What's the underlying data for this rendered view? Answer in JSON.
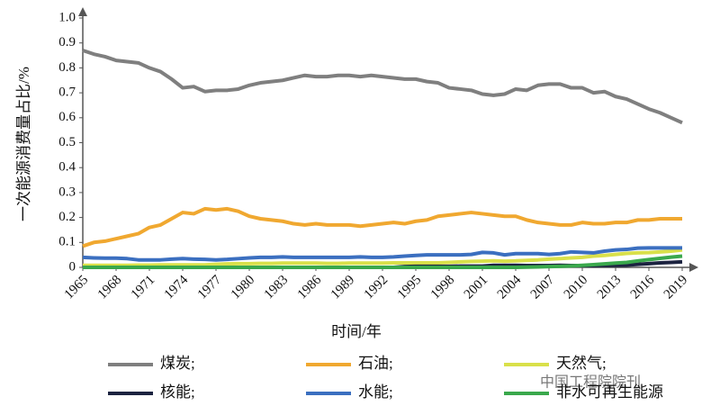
{
  "chart_data": {
    "type": "line",
    "x": [
      1965,
      1966,
      1967,
      1968,
      1969,
      1970,
      1971,
      1972,
      1973,
      1974,
      1975,
      1976,
      1977,
      1978,
      1979,
      1980,
      1981,
      1982,
      1983,
      1984,
      1985,
      1986,
      1987,
      1988,
      1989,
      1990,
      1991,
      1992,
      1993,
      1994,
      1995,
      1996,
      1997,
      1998,
      1999,
      2000,
      2001,
      2002,
      2003,
      2004,
      2005,
      2006,
      2007,
      2008,
      2009,
      2010,
      2011,
      2012,
      2013,
      2014,
      2015,
      2016,
      2017,
      2018,
      2019
    ],
    "xlim": [
      1965,
      2019
    ],
    "xticks": [
      1965,
      1968,
      1971,
      1974,
      1977,
      1980,
      1983,
      1986,
      1989,
      1992,
      1995,
      1998,
      2001,
      2004,
      2007,
      2010,
      2013,
      2016,
      2019
    ],
    "ylim": [
      0,
      1
    ],
    "yticks": [
      0,
      0.1,
      0.2,
      0.3,
      0.4,
      0.5,
      0.6,
      0.7,
      0.8,
      0.9,
      {
        "value": 1,
        "label": "1.0"
      }
    ],
    "xlabel": "时间/年",
    "ylabel": "一次能源消费量占比/%",
    "watermark": "中国工程院院刊",
    "series": [
      {
        "name": "煤炭;",
        "color": "#7f7f7f",
        "values": [
          0.87,
          0.855,
          0.845,
          0.83,
          0.825,
          0.82,
          0.8,
          0.785,
          0.755,
          0.72,
          0.725,
          0.705,
          0.71,
          0.71,
          0.715,
          0.73,
          0.74,
          0.745,
          0.75,
          0.76,
          0.77,
          0.765,
          0.765,
          0.77,
          0.77,
          0.765,
          0.77,
          0.765,
          0.76,
          0.755,
          0.755,
          0.745,
          0.74,
          0.72,
          0.715,
          0.71,
          0.695,
          0.69,
          0.695,
          0.715,
          0.71,
          0.73,
          0.735,
          0.735,
          0.72,
          0.72,
          0.7,
          0.705,
          0.685,
          0.675,
          0.655,
          0.635,
          0.62,
          0.6,
          0.58
        ]
      },
      {
        "name": "石油;",
        "color": "#f0a830",
        "values": [
          0.085,
          0.1,
          0.105,
          0.115,
          0.125,
          0.135,
          0.16,
          0.17,
          0.195,
          0.22,
          0.215,
          0.235,
          0.23,
          0.235,
          0.225,
          0.205,
          0.195,
          0.19,
          0.185,
          0.175,
          0.17,
          0.175,
          0.17,
          0.17,
          0.17,
          0.165,
          0.17,
          0.175,
          0.18,
          0.175,
          0.185,
          0.19,
          0.205,
          0.21,
          0.215,
          0.22,
          0.215,
          0.21,
          0.205,
          0.205,
          0.19,
          0.18,
          0.175,
          0.17,
          0.17,
          0.18,
          0.175,
          0.175,
          0.18,
          0.18,
          0.19,
          0.19,
          0.195,
          0.195,
          0.195
        ]
      },
      {
        "name": "天然气;",
        "color": "#d9e04a",
        "values": [
          0.008,
          0.008,
          0.008,
          0.008,
          0.008,
          0.009,
          0.009,
          0.01,
          0.01,
          0.01,
          0.01,
          0.01,
          0.012,
          0.014,
          0.015,
          0.015,
          0.016,
          0.016,
          0.017,
          0.017,
          0.017,
          0.017,
          0.016,
          0.016,
          0.017,
          0.017,
          0.017,
          0.017,
          0.018,
          0.018,
          0.018,
          0.018,
          0.018,
          0.02,
          0.022,
          0.024,
          0.025,
          0.026,
          0.025,
          0.026,
          0.028,
          0.03,
          0.033,
          0.035,
          0.038,
          0.04,
          0.045,
          0.048,
          0.052,
          0.056,
          0.058,
          0.059,
          0.062,
          0.065,
          0.07
        ]
      },
      {
        "name": "核能;",
        "color": "#1c2340",
        "values": [
          0,
          0,
          0,
          0,
          0,
          0,
          0,
          0,
          0,
          0,
          0,
          0,
          0,
          0,
          0,
          0,
          0,
          0,
          0,
          0,
          0,
          0,
          0,
          0,
          0,
          0,
          0,
          0,
          0,
          0.003,
          0.004,
          0.004,
          0.004,
          0.004,
          0.005,
          0.005,
          0.005,
          0.008,
          0.008,
          0.008,
          0.007,
          0.007,
          0.007,
          0.008,
          0.007,
          0.007,
          0.007,
          0.008,
          0.008,
          0.009,
          0.012,
          0.015,
          0.018,
          0.02,
          0.022
        ]
      },
      {
        "name": "水能;",
        "color": "#3b6fc0",
        "values": [
          0.04,
          0.038,
          0.037,
          0.037,
          0.035,
          0.03,
          0.03,
          0.03,
          0.033,
          0.035,
          0.033,
          0.032,
          0.03,
          0.032,
          0.035,
          0.038,
          0.04,
          0.04,
          0.042,
          0.04,
          0.04,
          0.04,
          0.04,
          0.04,
          0.04,
          0.042,
          0.04,
          0.04,
          0.042,
          0.045,
          0.048,
          0.05,
          0.05,
          0.05,
          0.05,
          0.052,
          0.06,
          0.058,
          0.05,
          0.055,
          0.055,
          0.055,
          0.052,
          0.055,
          0.062,
          0.06,
          0.058,
          0.065,
          0.07,
          0.072,
          0.077,
          0.078,
          0.078,
          0.078,
          0.078
        ]
      },
      {
        "name": "非水可再生能源",
        "color": "#3aa84c",
        "values": [
          0,
          0,
          0,
          0,
          0,
          0,
          0,
          0,
          0,
          0,
          0,
          0,
          0,
          0,
          0,
          0,
          0,
          0,
          0,
          0,
          0,
          0,
          0,
          0,
          0,
          0,
          0,
          0,
          0,
          0,
          0,
          0,
          0,
          0,
          0,
          0,
          0,
          0,
          0,
          0,
          0.001,
          0.002,
          0.003,
          0.004,
          0.006,
          0.008,
          0.011,
          0.014,
          0.017,
          0.02,
          0.026,
          0.031,
          0.036,
          0.041,
          0.045
        ]
      }
    ]
  }
}
